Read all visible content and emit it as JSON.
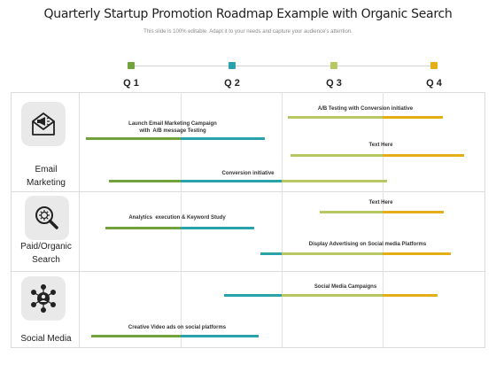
{
  "title": "Quarterly Startup Promotion Roadmap Example with Organic Search",
  "subtitle": "This slide is 100% editable. Adapt it to your needs and capture your audience's attention.",
  "colors": {
    "green": "#72a23b",
    "teal": "#2aa2ac",
    "olive": "#b9c763",
    "gold": "#e3ae16",
    "grid": "#dcdcdc"
  },
  "quarters": [
    {
      "label": "Q 1",
      "color": "green"
    },
    {
      "label": "Q 2",
      "color": "teal"
    },
    {
      "label": "Q 3",
      "color": "olive"
    },
    {
      "label": "Q 4",
      "color": "gold"
    }
  ],
  "rows": [
    {
      "label_line1": "Email",
      "label_line2": "Marketing",
      "icon": "email-megaphone-icon"
    },
    {
      "label_line1": "Paid/Organic",
      "label_line2": "Search",
      "icon": "search-magnifier-icon"
    },
    {
      "label_line1": "Social Media",
      "label_line2": "",
      "icon": "social-network-icon"
    }
  ],
  "tasks": [
    {
      "label": "Launch Email Marketing Campaign\nwith  A/B message Testing",
      "segments": [
        "green",
        "teal"
      ]
    },
    {
      "label": "A/B Testing with Conversion initiative",
      "segments": [
        "olive",
        "gold"
      ]
    },
    {
      "label": "Text Here",
      "segments": [
        "olive",
        "gold"
      ]
    },
    {
      "label": "Conversion initiative",
      "segments": [
        "green",
        "teal",
        "olive"
      ]
    },
    {
      "label": "Analytics  execution & Keyword Study",
      "segments": [
        "green",
        "teal"
      ]
    },
    {
      "label": "Text Here",
      "segments": [
        "olive",
        "gold"
      ]
    },
    {
      "label": "Display Advertising on Social media Platforms",
      "segments": [
        "teal",
        "olive",
        "gold"
      ]
    },
    {
      "label": "Social Media Campaigns",
      "segments": [
        "teal",
        "olive",
        "gold"
      ]
    },
    {
      "label": "Creative Video ads on social platforms",
      "segments": [
        "green",
        "teal"
      ]
    }
  ]
}
